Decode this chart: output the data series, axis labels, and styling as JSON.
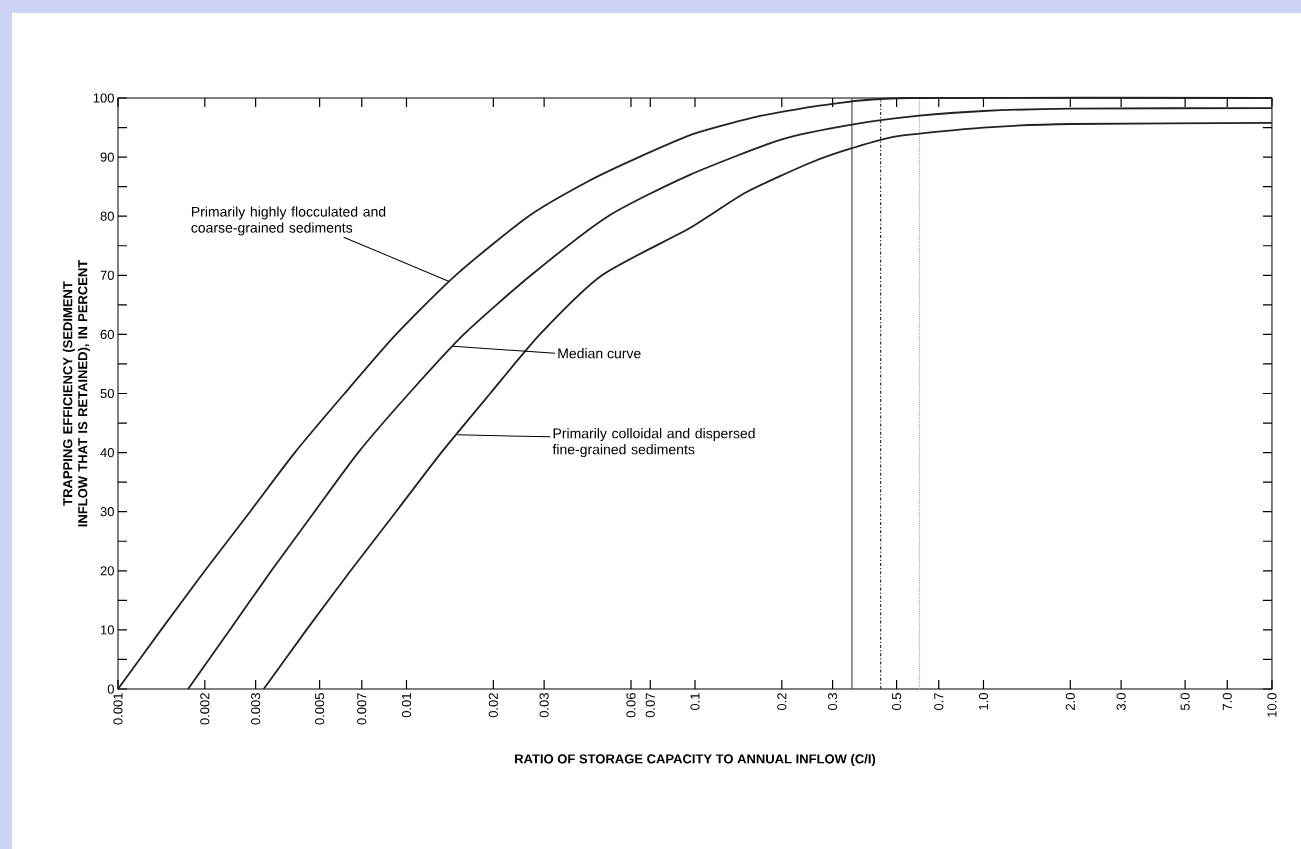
{
  "chart_data": {
    "type": "line",
    "xlabel": "RATIO OF STORAGE CAPACITY TO ANNUAL INFLOW (C/I)",
    "ylabel": "TRAPPING EFFICIENCY (SEDIMENT INFLOW THAT IS RETAINED), IN PERCENT",
    "log": "x",
    "marker": "none",
    "line_style": "solid",
    "xlim": [
      0.001,
      10
    ],
    "ylim": [
      0,
      100
    ],
    "xticks": [
      0.001,
      0.002,
      0.003,
      0.005,
      0.007,
      0.01,
      0.02,
      0.03,
      0.06,
      0.07,
      0.1,
      0.2,
      0.3,
      0.5,
      0.7,
      {
        "value": 1,
        "label": "1.0"
      },
      {
        "value": 2,
        "label": "2.0"
      },
      {
        "value": 3,
        "label": "3.0"
      },
      {
        "value": 5,
        "label": "5.0"
      },
      {
        "value": 7,
        "label": "7.0"
      },
      {
        "value": 10,
        "label": "10.0"
      }
    ],
    "yticks": [
      0,
      {
        "value": 5,
        "label": null
      },
      10,
      {
        "value": 15,
        "label": null
      },
      20,
      {
        "value": 25,
        "label": null
      },
      30,
      {
        "value": 35,
        "label": null
      },
      40,
      {
        "value": 45,
        "label": null
      },
      50,
      {
        "value": 55,
        "label": null
      },
      60,
      {
        "value": 65,
        "label": null
      },
      70,
      {
        "value": 75,
        "label": null
      },
      80,
      {
        "value": 85,
        "label": null
      },
      90,
      {
        "value": 95,
        "label": null
      },
      100
    ],
    "series": [
      {
        "color": "#222222",
        "x": [
          0.001,
          0.00141,
          0.002,
          0.00287,
          0.0041,
          0.0061,
          0.0092,
          0.0148,
          0.0265,
          0.043,
          0.064,
          0.1,
          0.17,
          0.3,
          0.55,
          10
        ],
        "values": [
          0,
          10,
          20,
          30,
          40,
          50,
          60,
          70,
          80,
          86,
          90,
          94,
          97,
          99,
          100,
          100
        ]
      },
      {
        "color": "#222222",
        "x": [
          0.00175,
          0.00244,
          0.0034,
          0.0048,
          0.0068,
          0.0102,
          0.0158,
          0.027,
          0.05,
          0.096,
          0.2,
          0.35,
          0.6,
          1,
          2,
          10
        ],
        "values": [
          0,
          10,
          20,
          30,
          40,
          50,
          60,
          70,
          80,
          87,
          93,
          95.5,
          97,
          97.8,
          98.2,
          98.3
        ]
      },
      {
        "color": "#222222",
        "x": [
          0.0032,
          0.0045,
          0.0064,
          0.0092,
          0.0132,
          0.0195,
          0.029,
          0.0476,
          0.096,
          0.15,
          0.25,
          0.35,
          0.5,
          1,
          2,
          10
        ],
        "values": [
          0,
          10,
          20,
          30,
          40,
          50,
          60,
          70,
          78,
          84,
          89,
          91.5,
          93.5,
          95,
          95.6,
          95.8
        ]
      }
    ],
    "ref_lines": [
      {
        "axis": "x",
        "value": 0.35,
        "color": "#555555",
        "line_style": "solid"
      },
      {
        "axis": "x",
        "value": 0.44,
        "color": "#333333",
        "line_style": "dashed"
      },
      {
        "axis": "x",
        "value": 0.6,
        "color": "#aaaaaa",
        "line_style": "dotted"
      }
    ],
    "annotations": [
      {
        "text": "Primarily highly flocculated and coarse-grained sediments",
        "x": 0.014,
        "y": 69
      },
      {
        "text": "Median curve",
        "x": 0.0145,
        "y": 58
      },
      {
        "text": "Primarily colloidal and dispersed fine-grained sediments",
        "x": 0.015,
        "y": 43
      }
    ]
  }
}
